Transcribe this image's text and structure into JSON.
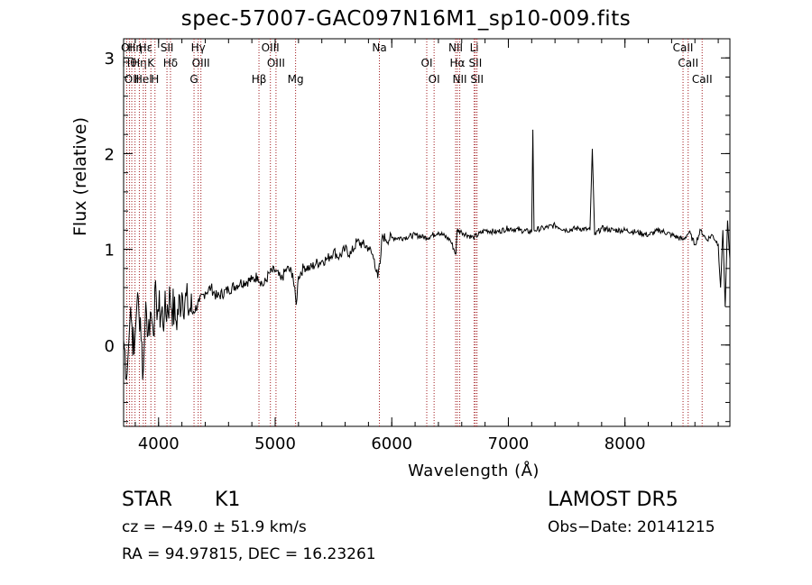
{
  "chart_data": {
    "type": "line",
    "title": "spec-57007-GAC097N16M1_sp10-009.fits",
    "xlabel": "Wavelength (Å)",
    "ylabel": "Flux (relative)",
    "xlim": [
      3700,
      8900
    ],
    "ylim": [
      -0.85,
      3.2
    ],
    "xticks": [
      4000,
      5000,
      6000,
      7000,
      8000
    ],
    "yticks": [
      0,
      1,
      2,
      3
    ],
    "series": [
      {
        "x": [
          3700,
          3730,
          3760,
          3790,
          3820,
          3850,
          3870,
          3890,
          3910,
          3930,
          3950,
          3980,
          4000,
          4050,
          4100,
          4150,
          4200,
          4250,
          4300,
          4350,
          4400,
          4450,
          4500,
          4600,
          4700,
          4800,
          4850,
          4900,
          4950,
          5000,
          5050,
          5100,
          5150,
          5180,
          5200,
          5250,
          5300,
          5350,
          5400,
          5450,
          5500,
          5550,
          5600,
          5650,
          5700,
          5750,
          5800,
          5850,
          5880,
          5900,
          5920,
          5950,
          6000,
          6100,
          6200,
          6300,
          6400,
          6500,
          6550,
          6560,
          6600,
          6700,
          6800,
          6900,
          7000,
          7100,
          7200,
          7210,
          7220,
          7300,
          7400,
          7500,
          7600,
          7700,
          7720,
          7740,
          7800,
          7900,
          8000,
          8100,
          8200,
          8300,
          8400,
          8500,
          8550,
          8600,
          8650,
          8700,
          8750,
          8800,
          8820,
          8840,
          8860,
          8880,
          8900
        ],
        "y": [
          0.05,
          -0.3,
          0.4,
          -0.1,
          0.55,
          0.05,
          -0.25,
          0.45,
          0.1,
          0.35,
          0.2,
          0.5,
          0.35,
          0.3,
          0.5,
          0.25,
          0.55,
          0.4,
          0.35,
          0.45,
          0.55,
          0.6,
          0.5,
          0.58,
          0.65,
          0.68,
          0.72,
          0.62,
          0.75,
          0.78,
          0.68,
          0.8,
          0.75,
          0.42,
          0.72,
          0.82,
          0.8,
          0.85,
          0.88,
          0.9,
          0.98,
          0.92,
          1.0,
          0.95,
          1.08,
          1.05,
          1.02,
          0.9,
          0.7,
          0.85,
          1.15,
          1.1,
          1.12,
          1.12,
          1.15,
          1.12,
          1.18,
          1.1,
          0.95,
          1.2,
          1.18,
          1.12,
          1.2,
          1.18,
          1.22,
          1.2,
          1.18,
          2.25,
          1.2,
          1.22,
          1.25,
          1.2,
          1.22,
          1.2,
          2.05,
          1.15,
          1.22,
          1.2,
          1.2,
          1.18,
          1.15,
          1.2,
          1.15,
          1.1,
          1.18,
          1.05,
          1.2,
          1.1,
          1.15,
          1.05,
          0.6,
          1.2,
          0.4,
          1.3,
          0.9
        ]
      }
    ],
    "lines": [
      {
        "x": 3727,
        "labels": [
          "OI"
        ]
      },
      {
        "x": 3750,
        "labels": [
          "Hθ"
        ]
      },
      {
        "x": 3770,
        "labels": [
          "OII"
        ]
      },
      {
        "x": 3798,
        "labels": [
          "Hη"
        ]
      },
      {
        "x": 3835,
        "labels": [
          "Hη"
        ]
      },
      {
        "x": 3869,
        "labels": [
          "HeI"
        ]
      },
      {
        "x": 3889,
        "labels": [
          "Hε"
        ]
      },
      {
        "x": 3934,
        "labels": [
          "K"
        ]
      },
      {
        "x": 3969,
        "labels": [
          "H"
        ]
      },
      {
        "x": 4072,
        "labels": [
          "SII"
        ]
      },
      {
        "x": 4102,
        "labels": [
          "Hδ"
        ]
      },
      {
        "x": 4304,
        "labels": [
          "G"
        ]
      },
      {
        "x": 4340,
        "labels": [
          "Hγ"
        ]
      },
      {
        "x": 4363,
        "labels": [
          "OIII"
        ]
      },
      {
        "x": 4861,
        "labels": [
          "Hβ"
        ]
      },
      {
        "x": 4959,
        "labels": [
          "OIII"
        ]
      },
      {
        "x": 5007,
        "labels": [
          "OIII"
        ]
      },
      {
        "x": 5175,
        "labels": [
          "Mg"
        ]
      },
      {
        "x": 5894,
        "labels": [
          "Na"
        ]
      },
      {
        "x": 6300,
        "labels": [
          "OI"
        ]
      },
      {
        "x": 6363,
        "labels": [
          "OI"
        ]
      },
      {
        "x": 6548,
        "labels": [
          "NII"
        ]
      },
      {
        "x": 6563,
        "labels": [
          "Hα"
        ]
      },
      {
        "x": 6583,
        "labels": [
          "NII"
        ]
      },
      {
        "x": 6707,
        "labels": [
          "Li"
        ]
      },
      {
        "x": 6717,
        "labels": [
          "SII"
        ]
      },
      {
        "x": 6731,
        "labels": [
          "SII"
        ]
      },
      {
        "x": 8498,
        "labels": [
          "CaII"
        ]
      },
      {
        "x": 8542,
        "labels": [
          "CaII"
        ]
      },
      {
        "x": 8662,
        "labels": [
          "CaII"
        ]
      }
    ],
    "line_color": "#a0181c"
  },
  "info": {
    "class": "STAR",
    "subclass": "K1",
    "survey": "LAMOST DR5",
    "cz": "cz = −49.0 ± 51.9 km/s",
    "obs_date": "Obs−Date: 20141215",
    "radec": "RA =  94.97815, DEC =  16.23261"
  }
}
